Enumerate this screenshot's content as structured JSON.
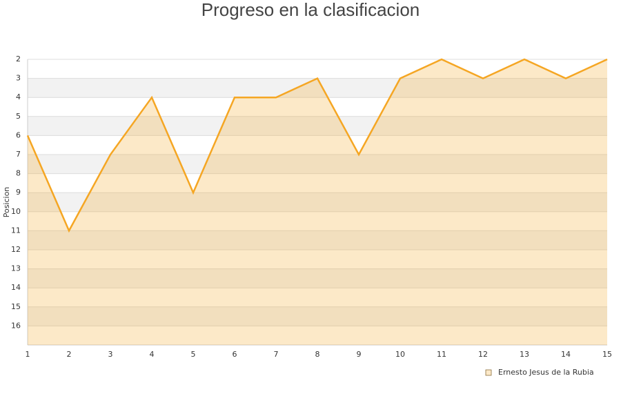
{
  "chart_data": {
    "type": "area",
    "title": "Progreso en la clasificacion",
    "y_label": "Posicion",
    "x": [
      1,
      2,
      3,
      4,
      5,
      6,
      7,
      8,
      9,
      10,
      11,
      12,
      13,
      14,
      15
    ],
    "series": [
      {
        "name": "Ernesto Jesus de la Rubia",
        "color": "#f5a623",
        "values": [
          6,
          11,
          7,
          4,
          9,
          4,
          4,
          3,
          7,
          3,
          2,
          3,
          2,
          3,
          2
        ]
      }
    ],
    "xlim": [
      1,
      15
    ],
    "xticks": [
      1,
      2,
      3,
      4,
      5,
      6,
      7,
      8,
      9,
      10,
      11,
      12,
      13,
      14,
      15
    ],
    "ylim": [
      2,
      17
    ],
    "yticks": [
      2,
      3,
      4,
      5,
      6,
      7,
      8,
      9,
      10,
      11,
      12,
      13,
      14,
      15,
      16
    ],
    "y_inverted": true,
    "grid": true,
    "legend": "bottom-right"
  }
}
